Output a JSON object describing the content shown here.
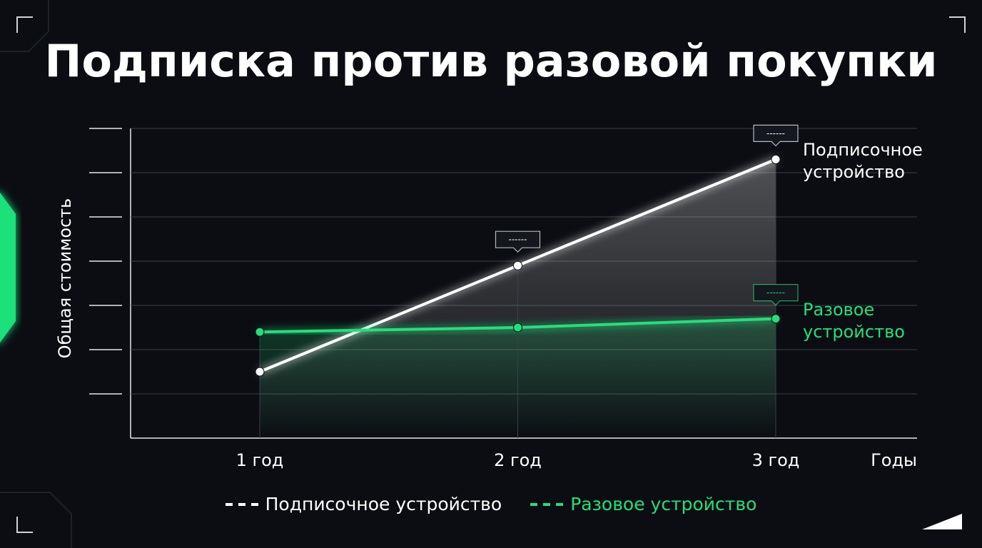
{
  "chart_data": {
    "type": "line",
    "title": "Подписка против разовой покупки",
    "x_label": "Годы",
    "y_label": "Общая стоимость",
    "categories": [
      "1 год",
      "2 год",
      "3 год"
    ],
    "series": [
      {
        "name": "Подписочное устройство",
        "color": "#ffffff",
        "values": [
          1.5,
          3.9,
          6.3
        ]
      },
      {
        "name": "Разовое устройство",
        "color": "#22e07a",
        "values": [
          2.4,
          2.5,
          2.7
        ]
      }
    ],
    "annotations": [
      "------",
      "------",
      "------"
    ],
    "ylim": [
      0,
      7
    ],
    "yticks": [
      1,
      2,
      3,
      4,
      5,
      6,
      7
    ],
    "grid": true
  }
}
